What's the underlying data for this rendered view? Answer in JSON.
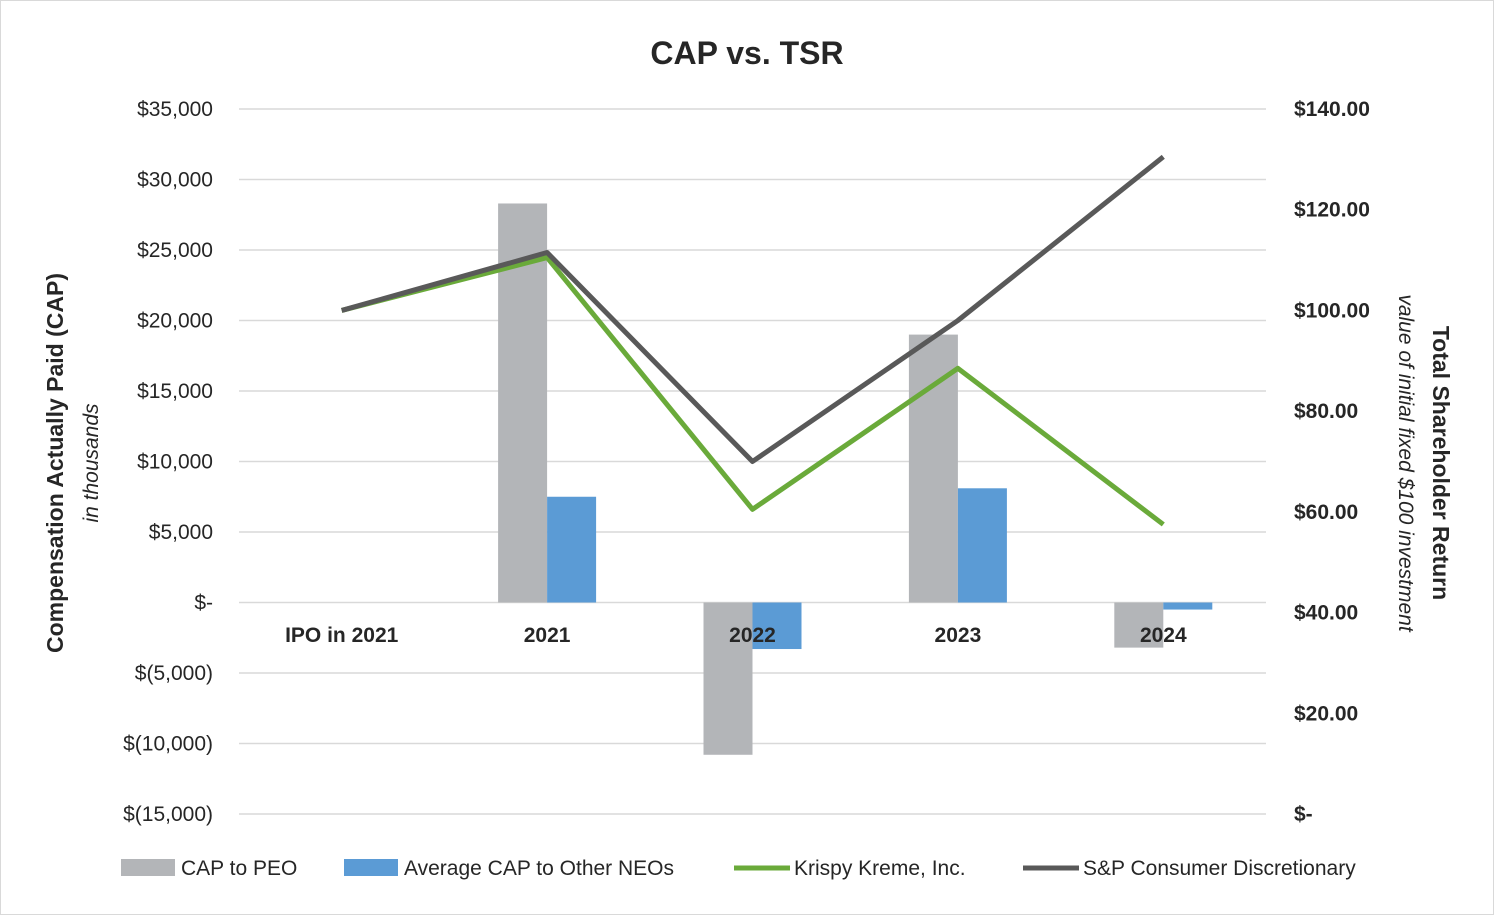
{
  "chart_data": {
    "type": "bar",
    "title": "CAP vs. TSR",
    "categories": [
      "IPO in 2021",
      "2021",
      "2022",
      "2023",
      "2024"
    ],
    "ylabel": "Compensation Actually Paid (CAP)",
    "ylabel_sub": "in thousands",
    "ylim": [
      -15000,
      35000
    ],
    "y_ticks": [
      35000,
      30000,
      25000,
      20000,
      15000,
      10000,
      5000,
      0,
      -5000,
      -10000,
      -15000
    ],
    "y_tick_labels": [
      "$35,000",
      "$30,000",
      "$25,000",
      "$20,000",
      "$15,000",
      "$10,000",
      "$5,000",
      "$-",
      "$(5,000)",
      "$(10,000)",
      "$(15,000)"
    ],
    "y2label": "Total Shareholder Return",
    "y2label_sub": "value of initial fixed $100 investment",
    "y2lim": [
      0,
      140
    ],
    "y2_ticks": [
      140,
      120,
      100,
      80,
      60,
      40,
      20,
      0
    ],
    "y2_tick_labels": [
      "$140.00",
      "$120.00",
      "$100.00",
      "$80.00",
      "$60.00",
      "$40.00",
      "$20.00",
      "$-"
    ],
    "grid": true,
    "legend_position": "bottom",
    "bar_series": [
      {
        "name": "CAP to PEO",
        "color": "#b3b5b8",
        "values": [
          null,
          28300,
          -10800,
          19000,
          -3200
        ]
      },
      {
        "name": "Average CAP to Other NEOs",
        "color": "#5b9bd5",
        "values": [
          null,
          7500,
          -3300,
          8100,
          -500
        ]
      }
    ],
    "line_series": [
      {
        "name": "Krispy Kreme, Inc.",
        "color": "#6aaa3a",
        "axis": "right",
        "values": [
          100,
          110.5,
          60.5,
          88.5,
          57.5
        ]
      },
      {
        "name": "S&P Consumer Discretionary",
        "color": "#595959",
        "axis": "right",
        "values": [
          100,
          111.5,
          70,
          98,
          130.5
        ]
      }
    ]
  }
}
